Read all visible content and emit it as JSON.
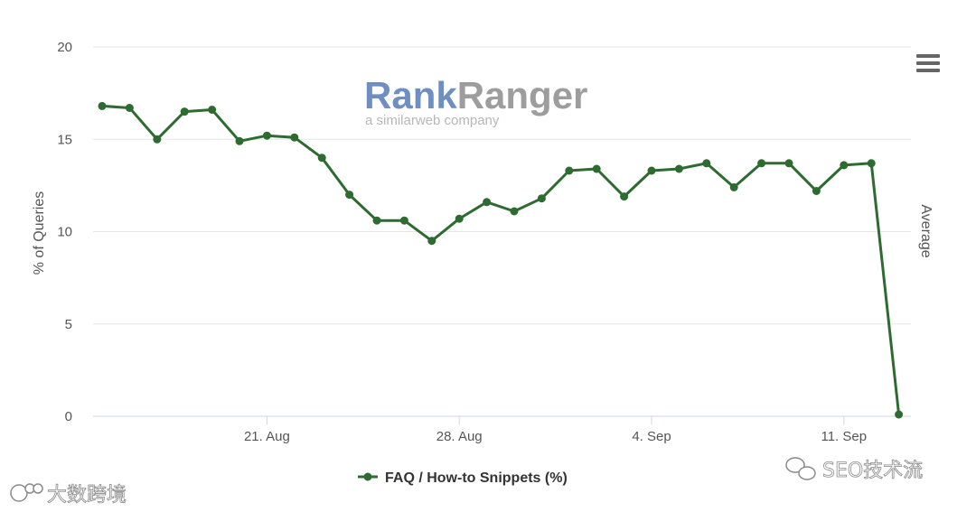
{
  "chart_data": {
    "type": "line",
    "title": "",
    "ylabel": "% of Queries",
    "y2label": "Average",
    "ylim": [
      0,
      20
    ],
    "yticks": [
      0,
      5,
      10,
      15,
      20
    ],
    "grid": true,
    "legend_position": "bottom",
    "x_start": "2023-08-15",
    "x_ticks": [
      {
        "label": "21. Aug",
        "x": "2023-08-21"
      },
      {
        "label": "28. Aug",
        "x": "2023-08-28"
      },
      {
        "label": "4. Sep",
        "x": "2023-09-04"
      },
      {
        "label": "11. Sep",
        "x": "2023-09-11"
      }
    ],
    "x": [
      "2023-08-15",
      "2023-08-16",
      "2023-08-17",
      "2023-08-18",
      "2023-08-19",
      "2023-08-20",
      "2023-08-21",
      "2023-08-22",
      "2023-08-23",
      "2023-08-24",
      "2023-08-25",
      "2023-08-26",
      "2023-08-27",
      "2023-08-28",
      "2023-08-29",
      "2023-08-30",
      "2023-08-31",
      "2023-09-01",
      "2023-09-02",
      "2023-09-03",
      "2023-09-04",
      "2023-09-05",
      "2023-09-06",
      "2023-09-07",
      "2023-09-08",
      "2023-09-09",
      "2023-09-10",
      "2023-09-11",
      "2023-09-12",
      "2023-09-13"
    ],
    "series": [
      {
        "name": "FAQ / How-to Snippets (%)",
        "color": "#2e6b30",
        "values": [
          16.8,
          16.7,
          15.0,
          16.5,
          16.6,
          14.9,
          15.2,
          15.1,
          14.0,
          12.0,
          10.6,
          10.6,
          9.5,
          10.7,
          11.6,
          11.1,
          11.8,
          13.3,
          13.4,
          11.9,
          13.3,
          13.4,
          13.7,
          12.4,
          13.7,
          13.7,
          12.2,
          13.6,
          13.7,
          0.1
        ]
      }
    ]
  },
  "ui": {
    "menu_icon": "hamburger-menu-icon",
    "watermark": {
      "brand_part1": "Rank",
      "brand_part2": "Ranger",
      "tagline": "a similarweb company",
      "color1": "#6f8fc2",
      "color2": "#9d9d9d"
    },
    "footer": {
      "left_text": "大数跨境",
      "right_text": "SEO技术流"
    }
  }
}
